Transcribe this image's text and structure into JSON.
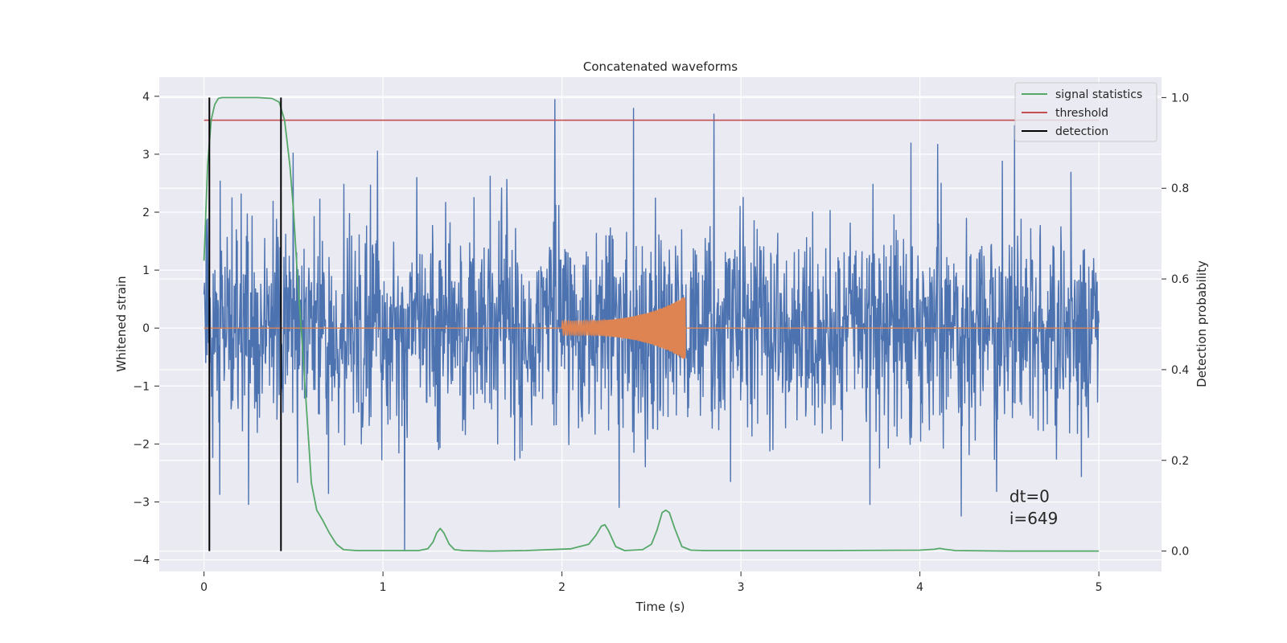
{
  "chart_data": {
    "type": "line",
    "title": "Concatenated waveforms",
    "xlabel": "Time (s)",
    "ylabel": "Whitened strain",
    "y2label": "Detection probability",
    "xlim": [
      -0.25,
      5.35
    ],
    "ylim": [
      -4.2,
      4.33
    ],
    "y2lim": [
      -0.045,
      1.045
    ],
    "xticks": [
      0,
      1,
      2,
      3,
      4,
      5
    ],
    "yticks": [
      -4,
      -3,
      -2,
      -1,
      0,
      1,
      2,
      3,
      4
    ],
    "y2ticks": [
      0.0,
      0.2,
      0.4,
      0.6,
      0.8,
      1.0
    ],
    "grid": true,
    "legend_position": "top-right",
    "colors": {
      "background": "#eaeaf2",
      "grid": "#ffffff",
      "strain": "#4c72b0",
      "template": "#dd8452",
      "signal_statistics": "#55a868",
      "threshold": "#c44e52",
      "detection": "#000000"
    },
    "series": [
      {
        "id": "strain",
        "axis": "left",
        "description_hidden": true,
        "x_range": [
          0,
          5
        ],
        "samples": 2048,
        "envelope_sd": 0.9,
        "peaks": [
          {
            "x": 1.96,
            "y": 3.95
          },
          {
            "x": 2.4,
            "y": 3.8
          },
          {
            "x": 2.85,
            "y": 3.7
          },
          {
            "x": 4.53,
            "y": 3.5
          },
          {
            "x": 1.12,
            "y": -3.85
          },
          {
            "x": 2.32,
            "y": -3.1
          },
          {
            "x": 4.23,
            "y": -3.25
          },
          {
            "x": 0.25,
            "y": -3.05
          },
          {
            "x": 3.72,
            "y": -3.05
          }
        ]
      },
      {
        "id": "template",
        "axis": "left",
        "x_range": [
          0,
          5
        ],
        "chirp_start": 2.0,
        "chirp_end": 2.69,
        "start_amp": 0.12,
        "end_amp": 0.55
      },
      {
        "id": "signal_statistics",
        "name": "signal statistics",
        "axis": "right",
        "x": [
          0,
          0.02,
          0.04,
          0.06,
          0.08,
          0.1,
          0.2,
          0.3,
          0.38,
          0.42,
          0.45,
          0.48,
          0.5,
          0.52,
          0.55,
          0.58,
          0.6,
          0.63,
          0.66,
          0.7,
          0.74,
          0.78,
          0.85,
          1.0,
          1.2,
          1.25,
          1.28,
          1.3,
          1.32,
          1.34,
          1.37,
          1.4,
          1.45,
          1.6,
          1.8,
          2.05,
          2.15,
          2.19,
          2.22,
          2.24,
          2.26,
          2.3,
          2.35,
          2.45,
          2.5,
          2.53,
          2.56,
          2.58,
          2.6,
          2.63,
          2.67,
          2.72,
          2.8,
          3.0,
          3.5,
          4.0,
          4.08,
          4.11,
          4.14,
          4.2,
          4.5,
          5.0
        ],
        "y": [
          0.64,
          0.85,
          0.95,
          0.985,
          0.998,
          1.0,
          1.0,
          1.0,
          0.998,
          0.99,
          0.95,
          0.85,
          0.75,
          0.62,
          0.45,
          0.27,
          0.15,
          0.09,
          0.07,
          0.04,
          0.015,
          0.003,
          0.001,
          0.001,
          0.001,
          0.005,
          0.02,
          0.04,
          0.05,
          0.04,
          0.015,
          0.003,
          0.001,
          0.0,
          0.001,
          0.005,
          0.015,
          0.035,
          0.055,
          0.058,
          0.045,
          0.01,
          0.001,
          0.003,
          0.015,
          0.045,
          0.085,
          0.09,
          0.085,
          0.05,
          0.01,
          0.002,
          0.001,
          0.001,
          0.001,
          0.002,
          0.004,
          0.006,
          0.004,
          0.001,
          0.0,
          0.0
        ]
      },
      {
        "id": "threshold",
        "name": "threshold",
        "axis": "right",
        "x": [
          0,
          5
        ],
        "y": [
          0.95,
          0.95
        ]
      },
      {
        "id": "detection",
        "name": "detection",
        "axis": "right",
        "x": [
          0.03,
          0.43
        ],
        "y_range": [
          0,
          1.0
        ]
      }
    ],
    "annotations": [
      {
        "text": "dt=0",
        "x": 4.5,
        "y": -3.0
      },
      {
        "text": "i=649",
        "x": 4.5,
        "y": -3.38
      }
    ]
  }
}
